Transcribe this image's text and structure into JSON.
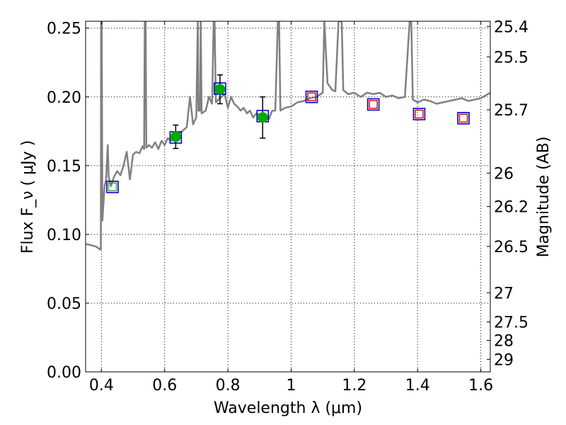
{
  "chart_data": {
    "type": "scatter",
    "xlabel": "Wavelength  λ (μm)",
    "ylabel": "Flux  F_ν  ( μJy )",
    "ylabel_right": "Magnitude (AB)",
    "xlim": [
      0.35,
      1.63
    ],
    "ylim": [
      0.0,
      0.255
    ],
    "grid": true,
    "x_ticks": [
      {
        "value": 0.4,
        "label": "0.4"
      },
      {
        "value": 0.6,
        "label": "0.6"
      },
      {
        "value": 0.8,
        "label": "0.8"
      },
      {
        "value": 1.0,
        "label": "1"
      },
      {
        "value": 1.2,
        "label": "1.2"
      },
      {
        "value": 1.4,
        "label": "1.4"
      },
      {
        "value": 1.6,
        "label": "1.6"
      }
    ],
    "y_ticks": [
      {
        "value": 0.0,
        "label": "0.00"
      },
      {
        "value": 0.05,
        "label": "0.05"
      },
      {
        "value": 0.1,
        "label": "0.10"
      },
      {
        "value": 0.15,
        "label": "0.15"
      },
      {
        "value": 0.2,
        "label": "0.20"
      },
      {
        "value": 0.25,
        "label": "0.25"
      }
    ],
    "right_ticks": [
      {
        "value": 25.4,
        "label": "25.4"
      },
      {
        "value": 25.5,
        "label": "25.5"
      },
      {
        "value": 25.7,
        "label": "25.7"
      },
      {
        "value": 26.0,
        "label": "26"
      },
      {
        "value": 26.2,
        "label": "26.2"
      },
      {
        "value": 26.5,
        "label": "26.5"
      },
      {
        "value": 27.0,
        "label": "27"
      },
      {
        "value": 27.5,
        "label": "27.5"
      },
      {
        "value": 28.0,
        "label": "28"
      },
      {
        "value": 29.0,
        "label": "29"
      }
    ],
    "model_spectrum": {
      "color": "#808080",
      "points": [
        [
          0.35,
          0.093
        ],
        [
          0.37,
          0.092
        ],
        [
          0.385,
          0.091
        ],
        [
          0.395,
          0.089
        ],
        [
          0.398,
          0.089
        ],
        [
          0.399,
          0.255
        ],
        [
          0.401,
          0.255
        ],
        [
          0.403,
          0.11
        ],
        [
          0.41,
          0.135
        ],
        [
          0.415,
          0.14
        ],
        [
          0.42,
          0.165
        ],
        [
          0.423,
          0.142
        ],
        [
          0.43,
          0.135
        ],
        [
          0.44,
          0.142
        ],
        [
          0.45,
          0.146
        ],
        [
          0.46,
          0.143
        ],
        [
          0.47,
          0.15
        ],
        [
          0.48,
          0.16
        ],
        [
          0.49,
          0.14
        ],
        [
          0.5,
          0.158
        ],
        [
          0.51,
          0.16
        ],
        [
          0.52,
          0.159
        ],
        [
          0.53,
          0.164
        ],
        [
          0.535,
          0.162
        ],
        [
          0.537,
          0.255
        ],
        [
          0.54,
          0.255
        ],
        [
          0.542,
          0.163
        ],
        [
          0.55,
          0.165
        ],
        [
          0.56,
          0.163
        ],
        [
          0.57,
          0.167
        ],
        [
          0.58,
          0.162
        ],
        [
          0.59,
          0.168
        ],
        [
          0.6,
          0.165
        ],
        [
          0.61,
          0.17
        ],
        [
          0.62,
          0.168
        ],
        [
          0.63,
          0.17
        ],
        [
          0.64,
          0.172
        ],
        [
          0.65,
          0.174
        ],
        [
          0.66,
          0.176
        ],
        [
          0.67,
          0.178
        ],
        [
          0.68,
          0.2
        ],
        [
          0.69,
          0.18
        ],
        [
          0.7,
          0.185
        ],
        [
          0.705,
          0.255
        ],
        [
          0.707,
          0.19
        ],
        [
          0.712,
          0.19
        ],
        [
          0.714,
          0.255
        ],
        [
          0.717,
          0.188
        ],
        [
          0.73,
          0.19
        ],
        [
          0.74,
          0.2
        ],
        [
          0.75,
          0.195
        ],
        [
          0.755,
          0.255
        ],
        [
          0.758,
          0.255
        ],
        [
          0.762,
          0.196
        ],
        [
          0.77,
          0.198
        ],
        [
          0.78,
          0.2
        ],
        [
          0.79,
          0.202
        ],
        [
          0.8,
          0.192
        ],
        [
          0.81,
          0.2
        ],
        [
          0.82,
          0.195
        ],
        [
          0.83,
          0.193
        ],
        [
          0.84,
          0.19
        ],
        [
          0.85,
          0.192
        ],
        [
          0.86,
          0.188
        ],
        [
          0.87,
          0.19
        ],
        [
          0.88,
          0.185
        ],
        [
          0.89,
          0.188
        ],
        [
          0.9,
          0.187
        ],
        [
          0.91,
          0.183
        ],
        [
          0.92,
          0.185
        ],
        [
          0.93,
          0.184
        ],
        [
          0.94,
          0.19
        ],
        [
          0.95,
          0.19
        ],
        [
          0.958,
          0.255
        ],
        [
          0.962,
          0.255
        ],
        [
          0.966,
          0.19
        ],
        [
          0.98,
          0.192
        ],
        [
          1.0,
          0.193
        ],
        [
          1.02,
          0.196
        ],
        [
          1.04,
          0.197
        ],
        [
          1.06,
          0.199
        ],
        [
          1.08,
          0.2
        ],
        [
          1.1,
          0.203
        ],
        [
          1.105,
          0.255
        ],
        [
          1.115,
          0.21
        ],
        [
          1.13,
          0.205
        ],
        [
          1.14,
          0.204
        ],
        [
          1.15,
          0.255
        ],
        [
          1.16,
          0.255
        ],
        [
          1.165,
          0.205
        ],
        [
          1.18,
          0.202
        ],
        [
          1.2,
          0.203
        ],
        [
          1.22,
          0.2
        ],
        [
          1.24,
          0.203
        ],
        [
          1.26,
          0.202
        ],
        [
          1.28,
          0.203
        ],
        [
          1.3,
          0.2
        ],
        [
          1.32,
          0.201
        ],
        [
          1.34,
          0.199
        ],
        [
          1.36,
          0.2
        ],
        [
          1.375,
          0.255
        ],
        [
          1.38,
          0.255
        ],
        [
          1.385,
          0.198
        ],
        [
          1.4,
          0.196
        ],
        [
          1.42,
          0.198
        ],
        [
          1.44,
          0.197
        ],
        [
          1.46,
          0.195
        ],
        [
          1.48,
          0.196
        ],
        [
          1.5,
          0.197
        ],
        [
          1.52,
          0.198
        ],
        [
          1.54,
          0.199
        ],
        [
          1.56,
          0.197
        ],
        [
          1.58,
          0.198
        ],
        [
          1.6,
          0.199
        ],
        [
          1.615,
          0.201
        ],
        [
          1.63,
          0.203
        ]
      ]
    },
    "model_squares": {
      "color": "#0000cc",
      "points": [
        [
          0.435,
          0.1345
        ],
        [
          0.635,
          0.1705
        ],
        [
          0.775,
          0.206
        ],
        [
          0.91,
          0.186
        ],
        [
          1.065,
          0.2
        ],
        [
          1.26,
          0.1945
        ],
        [
          1.405,
          0.1875
        ],
        [
          1.545,
          0.1845
        ]
      ]
    },
    "inner_squares": [
      {
        "x": 0.435,
        "y": 0.1345,
        "color": "#2ca02c"
      },
      {
        "x": 1.065,
        "y": 0.2,
        "color": "#cc0000"
      },
      {
        "x": 1.26,
        "y": 0.1945,
        "color": "#cc0000"
      },
      {
        "x": 1.405,
        "y": 0.1875,
        "color": "#cc0000"
      },
      {
        "x": 1.545,
        "y": 0.1845,
        "color": "#cc0000"
      }
    ],
    "observed": {
      "color": "#00aa00",
      "points": [
        {
          "x": 0.635,
          "y": 0.171,
          "err": 0.0085
        },
        {
          "x": 0.775,
          "y": 0.2055,
          "err": 0.0105
        },
        {
          "x": 0.91,
          "y": 0.185,
          "err": 0.015
        }
      ]
    }
  }
}
